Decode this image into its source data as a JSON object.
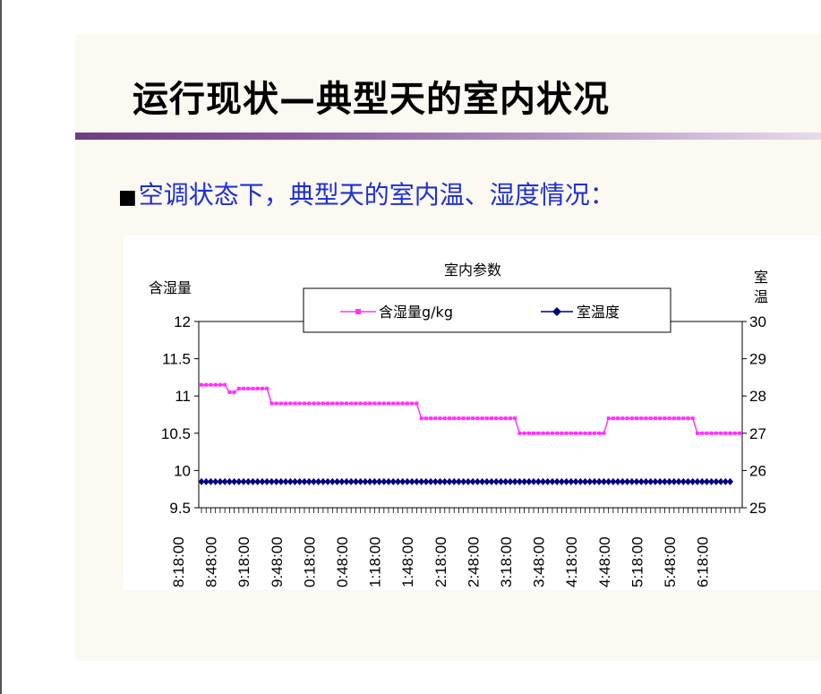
{
  "slide": {
    "title": "运行现状—典型天的室内状况",
    "bullet_mark": "■",
    "bullet_text": "空调状态下，典型天的室内温、湿度情况："
  },
  "colors": {
    "humidity": "#ff33ff",
    "temperature": "#000080",
    "title_rule": "#7a4a90",
    "bullet_text": "#1f2fd0"
  },
  "chart_data": {
    "type": "line",
    "title": "室内参数",
    "ylabel_left": "含湿量",
    "ylabel_right": "室温",
    "ylim_left": [
      9.5,
      12
    ],
    "ylim_right": [
      25,
      30
    ],
    "yticks_left": [
      "12",
      "11.5",
      "11",
      "10.5",
      "10",
      "9.5"
    ],
    "yticks_right": [
      "30",
      "29",
      "28",
      "27",
      "26",
      "25"
    ],
    "legend_position": "top",
    "x_tick_labels": [
      "8:18:00",
      "8:48:00",
      "9:18:00",
      "9:48:00",
      "0:18:00",
      "0:48:00",
      "1:18:00",
      "1:48:00",
      "2:18:00",
      "2:48:00",
      "3:18:00",
      "3:48:00",
      "4:18:00",
      "4:48:00",
      "5:18:00",
      "5:48:00",
      "6:18:00"
    ],
    "series": [
      {
        "name": "含湿量g/kg",
        "axis": "left",
        "marker": "square",
        "values": [
          11.15,
          11.15,
          11.15,
          11.15,
          11.15,
          11.15,
          11.05,
          11.05,
          11.1,
          11.1,
          11.1,
          11.1,
          11.1,
          11.1,
          11.1,
          10.9,
          10.9,
          10.9,
          10.9,
          10.9,
          10.9,
          10.9,
          10.9,
          10.9,
          10.9,
          10.9,
          10.9,
          10.9,
          10.9,
          10.9,
          10.9,
          10.9,
          10.9,
          10.9,
          10.9,
          10.9,
          10.9,
          10.9,
          10.9,
          10.9,
          10.9,
          10.9,
          10.9,
          10.9,
          10.9,
          10.9,
          10.9,
          10.7,
          10.7,
          10.7,
          10.7,
          10.7,
          10.7,
          10.7,
          10.7,
          10.7,
          10.7,
          10.7,
          10.7,
          10.7,
          10.7,
          10.7,
          10.7,
          10.7,
          10.7,
          10.7,
          10.7,
          10.7,
          10.5,
          10.5,
          10.5,
          10.5,
          10.5,
          10.5,
          10.5,
          10.5,
          10.5,
          10.5,
          10.5,
          10.5,
          10.5,
          10.5,
          10.5,
          10.5,
          10.5,
          10.5,
          10.5,
          10.7,
          10.7,
          10.7,
          10.7,
          10.7,
          10.7,
          10.7,
          10.7,
          10.7,
          10.7,
          10.7,
          10.7,
          10.7,
          10.7,
          10.7,
          10.7,
          10.7,
          10.7,
          10.7,
          10.5,
          10.5,
          10.5,
          10.5,
          10.5,
          10.5,
          10.5,
          10.5,
          10.5,
          10.5
        ]
      },
      {
        "name": "室温度",
        "axis": "right",
        "marker": "diamond",
        "values": [
          25.7,
          25.7,
          25.7,
          25.7,
          25.7,
          25.7,
          25.7,
          25.7,
          25.7,
          25.7,
          25.7,
          25.7,
          25.7,
          25.7,
          25.7,
          25.7,
          25.7,
          25.7,
          25.7,
          25.7,
          25.7,
          25.7,
          25.7,
          25.7,
          25.7,
          25.7,
          25.7,
          25.7,
          25.7,
          25.7,
          25.7,
          25.7,
          25.7,
          25.7,
          25.7,
          25.7,
          25.7,
          25.7,
          25.7,
          25.7,
          25.7,
          25.7,
          25.7,
          25.7,
          25.7,
          25.7,
          25.7,
          25.7,
          25.7,
          25.7,
          25.7,
          25.7,
          25.7,
          25.7,
          25.7,
          25.7,
          25.7,
          25.7,
          25.7,
          25.7,
          25.7,
          25.7,
          25.7,
          25.7,
          25.7,
          25.7,
          25.7,
          25.7,
          25.7,
          25.7,
          25.7,
          25.7,
          25.7,
          25.7,
          25.7,
          25.7,
          25.7,
          25.7,
          25.7,
          25.7,
          25.7,
          25.7,
          25.7,
          25.7,
          25.7,
          25.7,
          25.7,
          25.7,
          25.7,
          25.7,
          25.7,
          25.7,
          25.7,
          25.7,
          25.7,
          25.7,
          25.7,
          25.7,
          25.7,
          25.7,
          25.7,
          25.7,
          25.7,
          25.7,
          25.7,
          25.7,
          25.7,
          25.7,
          25.7,
          25.7,
          25.7,
          25.7,
          25.7,
          25.7
        ]
      }
    ]
  }
}
